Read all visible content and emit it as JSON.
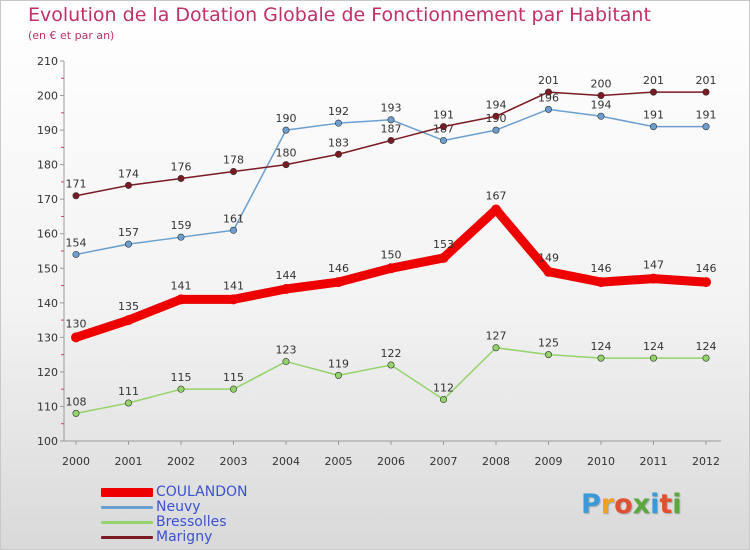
{
  "title": "Evolution de la Dotation Globale de Fonctionnement par Habitant",
  "subtitle": "(en € et par an)",
  "logo": {
    "text": "Proxiti",
    "colors": [
      "#3a9ad9",
      "#f0a020",
      "#e05030",
      "#5aa83a",
      "#3a9ad9",
      "#e05030",
      "#5aa83a"
    ]
  },
  "chart_data": {
    "type": "line",
    "x": [
      "2000",
      "2001",
      "2002",
      "2003",
      "2004",
      "2005",
      "2006",
      "2007",
      "2008",
      "2009",
      "2010",
      "2011",
      "2012"
    ],
    "ylim": [
      100,
      210
    ],
    "yticks": [
      100,
      110,
      120,
      130,
      140,
      150,
      160,
      170,
      180,
      190,
      200,
      210
    ],
    "grid": false,
    "legend": "bottom-left",
    "series": [
      {
        "name": "COULANDON",
        "color": "#ee0000",
        "values": [
          130,
          135,
          141,
          141,
          144,
          146,
          150,
          153,
          167,
          149,
          146,
          147,
          146
        ]
      },
      {
        "name": "Neuvy",
        "color": "#6a9fd0",
        "values": [
          154,
          157,
          159,
          161,
          190,
          192,
          193,
          187,
          190,
          196,
          194,
          191,
          191
        ]
      },
      {
        "name": "Bressolles",
        "color": "#93d46a",
        "values": [
          108,
          111,
          115,
          115,
          123,
          119,
          122,
          112,
          127,
          125,
          124,
          124,
          124
        ]
      },
      {
        "name": "Marigny",
        "color": "#7a1a22",
        "values": [
          171,
          174,
          176,
          178,
          180,
          183,
          187,
          191,
          194,
          201,
          200,
          201,
          201
        ]
      }
    ]
  }
}
